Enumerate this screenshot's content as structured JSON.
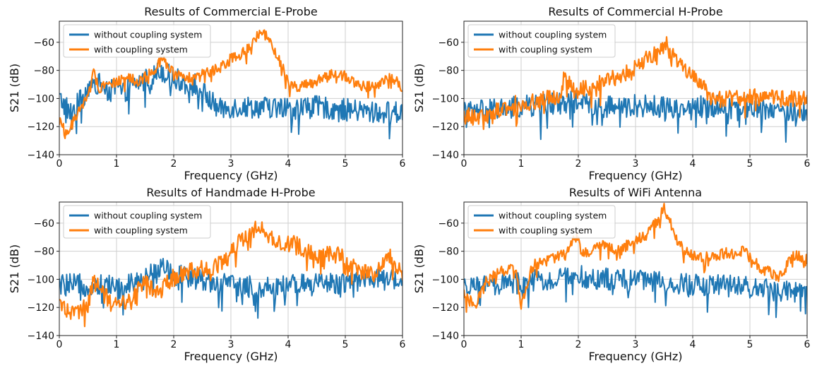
{
  "colors": {
    "without": "#1f77b4",
    "with": "#ff7f0e"
  },
  "chart_data": [
    {
      "type": "line",
      "title": "Results of Commercial E-Probe",
      "xlabel": "Frequency (GHz)",
      "ylabel": "S21 (dB)",
      "xlim": [
        0,
        6
      ],
      "ylim": [
        -140,
        -45
      ],
      "xticks": [
        0,
        1,
        2,
        3,
        4,
        5,
        6
      ],
      "yticks": [
        -140,
        -120,
        -100,
        -80,
        -60
      ],
      "grid": true,
      "legend": "top-left",
      "series": [
        {
          "name": "without coupling system",
          "color": "#1f77b4",
          "noise": 8,
          "x": [
            0,
            0.2,
            0.4,
            0.5,
            0.6,
            0.8,
            0.9,
            1.0,
            1.1,
            1.3,
            1.5,
            1.7,
            1.8,
            2.0,
            2.2,
            2.4,
            2.6,
            2.8,
            3.0,
            3.5,
            4.0,
            4.5,
            5.0,
            5.5,
            6.0
          ],
          "y": [
            -100,
            -110,
            -100,
            -92,
            -88,
            -92,
            -95,
            -92,
            -96,
            -90,
            -87,
            -82,
            -80,
            -86,
            -88,
            -90,
            -100,
            -108,
            -106,
            -106,
            -107,
            -106,
            -108,
            -110,
            -110
          ]
        },
        {
          "name": "with coupling system",
          "color": "#ff7f0e",
          "noise": 4,
          "x": [
            0,
            0.1,
            0.2,
            0.3,
            0.4,
            0.5,
            0.6,
            0.7,
            0.8,
            1.0,
            1.2,
            1.4,
            1.6,
            1.8,
            2.0,
            2.2,
            2.4,
            2.6,
            2.8,
            3.0,
            3.2,
            3.35,
            3.5,
            3.6,
            3.7,
            3.8,
            3.9,
            4.0,
            4.2,
            4.5,
            4.8,
            5.0,
            5.2,
            5.5,
            5.8,
            6.0
          ],
          "y": [
            -112,
            -125,
            -120,
            -112,
            -105,
            -95,
            -82,
            -92,
            -90,
            -88,
            -86,
            -88,
            -82,
            -72,
            -82,
            -86,
            -84,
            -82,
            -78,
            -72,
            -68,
            -62,
            -52,
            -55,
            -62,
            -68,
            -78,
            -88,
            -92,
            -88,
            -82,
            -84,
            -90,
            -92,
            -85,
            -92
          ]
        }
      ]
    },
    {
      "type": "line",
      "title": "Results of Commercial H-Probe",
      "xlabel": "Frequency (GHz)",
      "ylabel": "S21 (dB)",
      "xlim": [
        0,
        6
      ],
      "ylim": [
        -140,
        -45
      ],
      "xticks": [
        0,
        1,
        2,
        3,
        4,
        5,
        6
      ],
      "yticks": [
        -140,
        -120,
        -100,
        -80,
        -60
      ],
      "grid": true,
      "legend": "top-left",
      "series": [
        {
          "name": "without coupling system",
          "color": "#1f77b4",
          "noise": 8,
          "x": [
            0,
            0.5,
            1.0,
            1.5,
            2.0,
            2.5,
            3.0,
            3.5,
            4.0,
            4.5,
            5.0,
            5.5,
            6.0
          ],
          "y": [
            -110,
            -108,
            -106,
            -104,
            -102,
            -106,
            -105,
            -106,
            -106,
            -105,
            -106,
            -108,
            -110
          ]
        },
        {
          "name": "with coupling system",
          "color": "#ff7f0e",
          "noise": 6,
          "x": [
            0,
            0.3,
            0.6,
            0.9,
            1.2,
            1.5,
            1.7,
            1.75,
            1.9,
            2.2,
            2.5,
            2.8,
            3.0,
            3.2,
            3.4,
            3.55,
            3.7,
            3.9,
            4.2,
            4.3,
            4.6,
            5.0,
            5.4,
            5.8,
            6.0
          ],
          "y": [
            -112,
            -114,
            -108,
            -104,
            -102,
            -100,
            -98,
            -82,
            -95,
            -92,
            -88,
            -82,
            -78,
            -72,
            -66,
            -60,
            -70,
            -80,
            -90,
            -100,
            -100,
            -98,
            -100,
            -100,
            -100
          ]
        }
      ]
    },
    {
      "type": "line",
      "title": "Results of Handmade H-Probe",
      "xlabel": "Frequency (GHz)",
      "ylabel": "S21 (dB)",
      "xlim": [
        0,
        6
      ],
      "ylim": [
        -140,
        -45
      ],
      "xticks": [
        0,
        1,
        2,
        3,
        4,
        5,
        6
      ],
      "yticks": [
        -140,
        -120,
        -100,
        -80,
        -60
      ],
      "grid": true,
      "legend": "top-left",
      "series": [
        {
          "name": "without coupling system",
          "color": "#1f77b4",
          "noise": 8,
          "x": [
            0,
            0.5,
            1.0,
            1.5,
            1.8,
            2.0,
            2.5,
            3.0,
            3.5,
            4.0,
            4.5,
            5.0,
            5.5,
            6.0
          ],
          "y": [
            -104,
            -104,
            -104,
            -100,
            -88,
            -96,
            -100,
            -104,
            -106,
            -104,
            -104,
            -102,
            -100,
            -100
          ]
        },
        {
          "name": "with coupling system",
          "color": "#ff7f0e",
          "noise": 6,
          "x": [
            0,
            0.3,
            0.5,
            0.6,
            0.8,
            1.0,
            1.2,
            1.5,
            1.7,
            2.0,
            2.3,
            2.6,
            2.9,
            3.1,
            3.3,
            3.5,
            3.7,
            3.9,
            4.1,
            4.3,
            4.6,
            4.9,
            5.0,
            5.2,
            5.5,
            5.8,
            6.0
          ],
          "y": [
            -118,
            -125,
            -118,
            -100,
            -112,
            -118,
            -115,
            -102,
            -110,
            -98,
            -94,
            -92,
            -88,
            -75,
            -68,
            -62,
            -70,
            -76,
            -74,
            -80,
            -84,
            -78,
            -88,
            -92,
            -96,
            -84,
            -98
          ]
        }
      ]
    },
    {
      "type": "line",
      "title": "Results of WiFi Antenna",
      "xlabel": "Frequency (GHz)",
      "ylabel": "S21 (dB)",
      "xlim": [
        0,
        6
      ],
      "ylim": [
        -140,
        -45
      ],
      "xticks": [
        0,
        1,
        2,
        3,
        4,
        5,
        6
      ],
      "yticks": [
        -140,
        -120,
        -100,
        -80,
        -60
      ],
      "grid": true,
      "legend": "top-left",
      "series": [
        {
          "name": "without coupling system",
          "color": "#1f77b4",
          "noise": 8,
          "x": [
            0,
            0.5,
            1.0,
            1.5,
            2.0,
            2.5,
            3.0,
            3.5,
            4.0,
            4.5,
            5.0,
            5.5,
            6.0
          ],
          "y": [
            -108,
            -104,
            -102,
            -100,
            -98,
            -100,
            -100,
            -102,
            -104,
            -104,
            -106,
            -108,
            -110
          ]
        },
        {
          "name": "with coupling system",
          "color": "#ff7f0e",
          "noise": 4,
          "x": [
            0,
            0.2,
            0.4,
            0.6,
            0.8,
            0.9,
            1.0,
            1.2,
            1.5,
            1.8,
            1.95,
            2.1,
            2.4,
            2.7,
            3.0,
            3.2,
            3.35,
            3.5,
            3.6,
            3.7,
            3.85,
            4.1,
            4.5,
            4.9,
            5.2,
            5.5,
            5.8,
            6.0
          ],
          "y": [
            -110,
            -120,
            -100,
            -95,
            -92,
            -92,
            -118,
            -90,
            -86,
            -82,
            -70,
            -82,
            -76,
            -80,
            -72,
            -68,
            -60,
            -50,
            -58,
            -70,
            -80,
            -85,
            -82,
            -80,
            -92,
            -98,
            -82,
            -86
          ]
        }
      ]
    }
  ]
}
